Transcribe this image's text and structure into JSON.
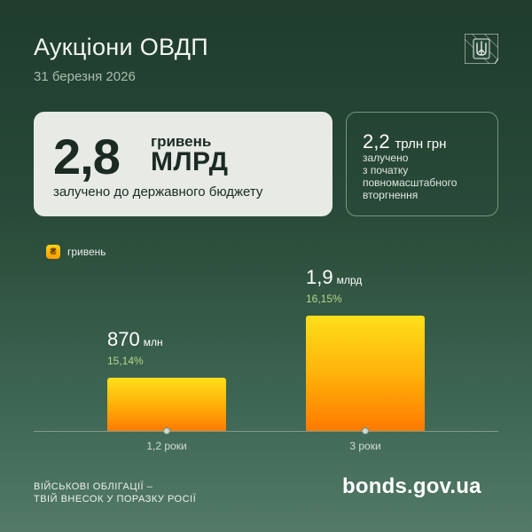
{
  "header": {
    "title": "Аукціони ОВДП",
    "date": "31 березня 2026"
  },
  "main_card": {
    "amount": "2,8",
    "currency": "гривень",
    "unit": "МЛРД",
    "caption": "залучено до державного бюджету"
  },
  "side_card": {
    "amount": "2,2",
    "unit": "трлн грн",
    "caption_lines": [
      "залучено",
      "з початку",
      "повномасштабного",
      "вторгнення"
    ]
  },
  "legend": {
    "icon_symbol": "₴",
    "label": "гривень"
  },
  "chart_data": {
    "type": "bar",
    "categories": [
      "1,2 роки",
      "3 роки"
    ],
    "values": [
      870,
      1900
    ],
    "value_units": "млн",
    "value_labels": [
      {
        "value": "870",
        "unit": "млн"
      },
      {
        "value": "1,9",
        "unit": "млрд"
      }
    ],
    "yield_labels": [
      "15,14%",
      "16,15%"
    ],
    "series": [
      {
        "name": "гривень",
        "values": [
          870,
          1900
        ]
      }
    ],
    "legend_position": "top-left",
    "grid": false,
    "bar_color_top": "#ffdf1a",
    "bar_color_bottom": "#ff7a00"
  },
  "footer": {
    "slogan_line1": "ВІЙСЬКОВІ ОБЛІГАЦІЇ –",
    "slogan_line2": "ТВІЙ ВНЕСОК У ПОРАЗКУ РОСІЇ",
    "site": "bonds.gov.ua"
  },
  "icons": {
    "emblem": "trident-emblem-icon",
    "legend": "hryvnia-coin-icon"
  },
  "colors": {
    "background_top": "#1f3c2c",
    "background_bottom": "#527a66",
    "card": "#e7eae5",
    "yield_text": "#b7d68a"
  }
}
